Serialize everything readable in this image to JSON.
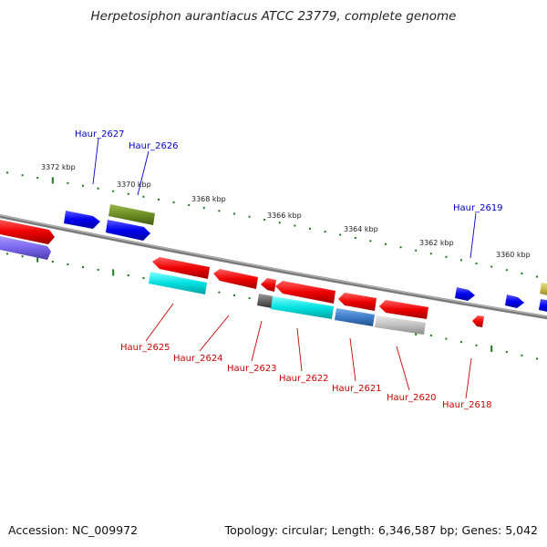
{
  "title": "Herpetosiphon aurantiacus ATCC 23779, complete genome",
  "footer": {
    "accession": "Accession: NC_009972",
    "summary": "Topology: circular; Length: 6,346,587 bp; Genes: 5,042"
  },
  "scale_labels": [
    "3372 kbp",
    "3370 kbp",
    "3368 kbp",
    "3366 kbp",
    "3364 kbp",
    "3362 kbp",
    "3360 kbp"
  ],
  "gene_labels": {
    "top": [
      "Haur_2627",
      "Haur_2626",
      "Haur_2619"
    ],
    "bottom": [
      "Haur_2625",
      "Haur_2624",
      "Haur_2623",
      "Haur_2622",
      "Haur_2621",
      "Haur_2620",
      "Haur_2618"
    ]
  },
  "colors": {
    "top_label": "#0000cc",
    "bottom_label": "#cc0000",
    "backbone": "#808080",
    "tick": "#1a7a1a",
    "red": "#ee0000",
    "blue": "#0000ee",
    "cyan": "#00e0e0",
    "olive": "#6b8e23",
    "steel": "#3d7cc9",
    "silver": "#c0c0c0",
    "purple": "#7b68ee",
    "gray": "#666666"
  }
}
